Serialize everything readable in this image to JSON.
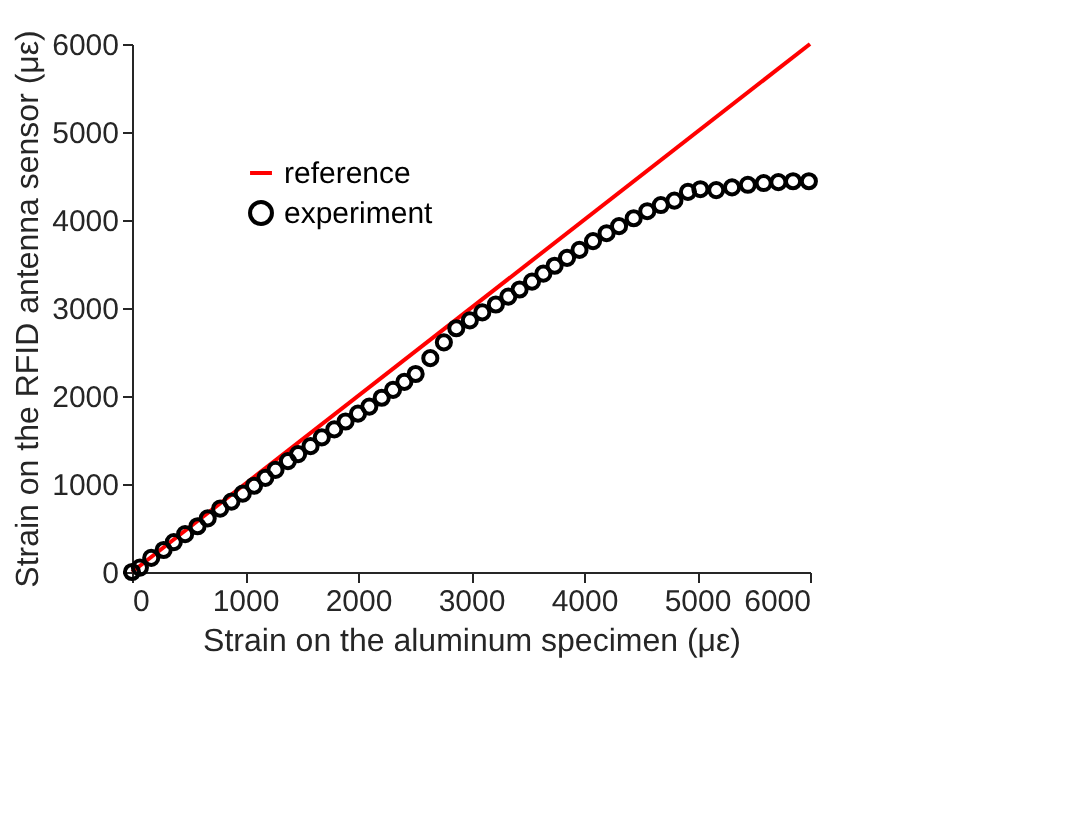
{
  "chart_data": {
    "type": "scatter",
    "xlabel": "Strain on the aluminum specimen (με)",
    "ylabel": "Strain on the RFID antenna sensor (με)",
    "xlim": [
      0,
      6000
    ],
    "ylim": [
      0,
      6000
    ],
    "xticks": [
      0,
      1000,
      2000,
      3000,
      4000,
      5000,
      6000
    ],
    "yticks": [
      0,
      1000,
      2000,
      3000,
      4000,
      5000,
      6000
    ],
    "grid": false,
    "legend": "top left",
    "series": [
      {
        "name": "reference",
        "type": "line",
        "color": "#ff0000",
        "marker": "none",
        "line_style": "solid",
        "x": [
          0,
          6000
        ],
        "values": [
          0,
          6000
        ]
      },
      {
        "name": "experiment",
        "color": "#000000",
        "marker": "circle",
        "x": [
          0,
          70,
          170,
          280,
          370,
          470,
          580,
          670,
          780,
          880,
          980,
          1080,
          1180,
          1270,
          1380,
          1470,
          1580,
          1680,
          1790,
          1890,
          2000,
          2100,
          2210,
          2310,
          2410,
          2510,
          2640,
          2760,
          2870,
          2990,
          3100,
          3220,
          3330,
          3430,
          3540,
          3640,
          3740,
          3850,
          3960,
          4080,
          4200,
          4310,
          4440,
          4560,
          4680,
          4800,
          4920,
          5030,
          5170,
          5310,
          5450,
          5590,
          5720,
          5850,
          5990
        ],
        "values": [
          0,
          50,
          160,
          250,
          340,
          430,
          520,
          610,
          720,
          800,
          890,
          980,
          1070,
          1160,
          1260,
          1340,
          1430,
          1530,
          1620,
          1710,
          1800,
          1880,
          1980,
          2070,
          2160,
          2250,
          2430,
          2610,
          2770,
          2860,
          2950,
          3040,
          3130,
          3210,
          3300,
          3390,
          3480,
          3570,
          3660,
          3760,
          3850,
          3930,
          4020,
          4100,
          4170,
          4220,
          4320,
          4350,
          4340,
          4370,
          4400,
          4420,
          4430,
          4440,
          4440
        ]
      }
    ]
  }
}
